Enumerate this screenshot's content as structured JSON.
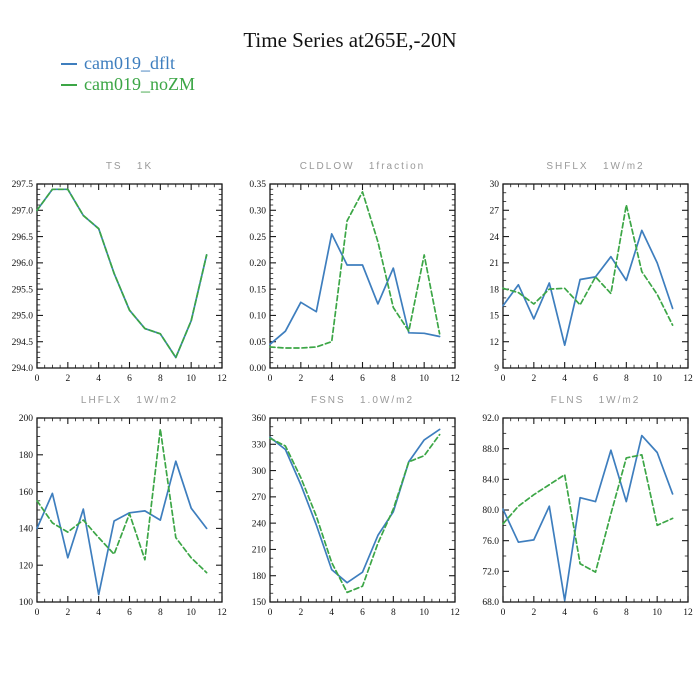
{
  "page": {
    "title": "Time Series at265E,-20N"
  },
  "colors": {
    "blue": "#3E7EBE",
    "green": "#3CA646",
    "frame": "#1a1a1a",
    "subplot_title": "#999999"
  },
  "legend": [
    {
      "label": "cam019_dflt",
      "color": "blue",
      "style": "solid"
    },
    {
      "label": "cam019_noZM",
      "color": "green",
      "style": "dashed"
    }
  ],
  "chart_data": [
    {
      "type": "line",
      "title": "TS   1K",
      "x": [
        0,
        1,
        2,
        3,
        4,
        5,
        6,
        7,
        8,
        9,
        10,
        11
      ],
      "xlim": [
        0,
        12
      ],
      "xtick_step": 2,
      "xminor_step": 0.5,
      "ylim": [
        294.0,
        297.5
      ],
      "ytick_step": 0.5,
      "yminor_step": 0.1,
      "ydecimals": 1,
      "series": [
        {
          "name": "cam019_dflt",
          "color": "blue",
          "dash": false,
          "values": [
            297.0,
            297.4,
            297.4,
            296.9,
            296.65,
            295.8,
            295.1,
            294.75,
            294.65,
            294.2,
            294.9,
            296.15
          ]
        },
        {
          "name": "cam019_noZM",
          "color": "green",
          "dash": true,
          "values": [
            297.0,
            297.4,
            297.4,
            296.9,
            296.65,
            295.8,
            295.1,
            294.75,
            294.65,
            294.2,
            294.9,
            296.15
          ]
        }
      ]
    },
    {
      "type": "line",
      "title": "CLDLOW   1fraction",
      "x": [
        0,
        1,
        2,
        3,
        4,
        5,
        6,
        7,
        8,
        9,
        10,
        11
      ],
      "xlim": [
        0,
        12
      ],
      "xtick_step": 2,
      "xminor_step": 0.5,
      "ylim": [
        0.0,
        0.35
      ],
      "ytick_step": 0.05,
      "yminor_step": 0.01,
      "ydecimals": 2,
      "series": [
        {
          "name": "cam019_dflt",
          "color": "blue",
          "dash": false,
          "values": [
            0.045,
            0.07,
            0.125,
            0.107,
            0.255,
            0.196,
            0.196,
            0.122,
            0.19,
            0.067,
            0.066,
            0.06
          ]
        },
        {
          "name": "cam019_noZM",
          "color": "green",
          "dash": true,
          "values": [
            0.04,
            0.038,
            0.038,
            0.04,
            0.05,
            0.28,
            0.335,
            0.24,
            0.115,
            0.07,
            0.215,
            0.065
          ]
        }
      ]
    },
    {
      "type": "line",
      "title": "SHFLX   1W/m2",
      "x": [
        0,
        1,
        2,
        3,
        4,
        5,
        6,
        7,
        8,
        9,
        10,
        11
      ],
      "xlim": [
        0,
        12
      ],
      "xtick_step": 2,
      "xminor_step": 0.5,
      "ylim": [
        9,
        30
      ],
      "ytick_step": 3,
      "yminor_step": 1,
      "ydecimals": 0,
      "series": [
        {
          "name": "cam019_dflt",
          "color": "blue",
          "dash": false,
          "values": [
            16.1,
            18.5,
            14.6,
            18.7,
            11.6,
            19.1,
            19.4,
            21.7,
            19.0,
            24.7,
            21.0,
            15.8
          ]
        },
        {
          "name": "cam019_noZM",
          "color": "green",
          "dash": true,
          "values": [
            18.1,
            17.6,
            16.3,
            18.0,
            18.1,
            16.2,
            19.4,
            17.5,
            27.6,
            20.0,
            17.4,
            13.9
          ]
        }
      ]
    },
    {
      "type": "line",
      "title": "LHFLX   1W/m2",
      "x": [
        0,
        1,
        2,
        3,
        4,
        5,
        6,
        7,
        8,
        9,
        10,
        11
      ],
      "xlim": [
        0,
        12
      ],
      "xtick_step": 2,
      "xminor_step": 0.5,
      "ylim": [
        100,
        200
      ],
      "ytick_step": 20,
      "yminor_step": 5,
      "ydecimals": 0,
      "series": [
        {
          "name": "cam019_dflt",
          "color": "blue",
          "dash": false,
          "values": [
            140,
            159,
            124,
            150.5,
            104,
            144,
            148.5,
            149.5,
            144.5,
            176.5,
            151,
            140
          ]
        },
        {
          "name": "cam019_noZM",
          "color": "green",
          "dash": true,
          "values": [
            155,
            143,
            138,
            144.5,
            135,
            126,
            148,
            123,
            194,
            135,
            124,
            116
          ]
        }
      ]
    },
    {
      "type": "line",
      "title": "FSNS   1.0W/m2",
      "x": [
        0,
        1,
        2,
        3,
        4,
        5,
        6,
        7,
        8,
        9,
        10,
        11
      ],
      "xlim": [
        0,
        12
      ],
      "xtick_step": 2,
      "xminor_step": 0.5,
      "ylim": [
        150,
        360
      ],
      "ytick_step": 30,
      "yminor_step": 10,
      "ydecimals": 0,
      "series": [
        {
          "name": "cam019_dflt",
          "color": "blue",
          "dash": false,
          "values": [
            338,
            324,
            284,
            238,
            187,
            172,
            184,
            226,
            253,
            310,
            335,
            347
          ]
        },
        {
          "name": "cam019_noZM",
          "color": "green",
          "dash": true,
          "values": [
            337,
            328,
            292,
            248,
            195,
            161,
            168,
            217,
            256,
            310,
            317,
            341
          ]
        }
      ]
    },
    {
      "type": "line",
      "title": "FLNS   1W/m2",
      "x": [
        0,
        1,
        2,
        3,
        4,
        5,
        6,
        7,
        8,
        9,
        10,
        11
      ],
      "xlim": [
        0,
        12
      ],
      "xtick_step": 2,
      "xminor_step": 0.5,
      "ylim": [
        68.0,
        92.0
      ],
      "ytick_step": 4,
      "yminor_step": 2,
      "ydecimals": 1,
      "series": [
        {
          "name": "cam019_dflt",
          "color": "blue",
          "dash": false,
          "values": [
            80.1,
            75.8,
            76.1,
            80.5,
            68.2,
            81.6,
            81.1,
            87.8,
            81.1,
            89.7,
            87.5,
            82.1
          ]
        },
        {
          "name": "cam019_noZM",
          "color": "green",
          "dash": true,
          "values": [
            78.2,
            80.5,
            82.0,
            83.3,
            84.6,
            73.0,
            71.9,
            79.5,
            86.8,
            87.2,
            78.0,
            78.9
          ]
        }
      ]
    }
  ]
}
